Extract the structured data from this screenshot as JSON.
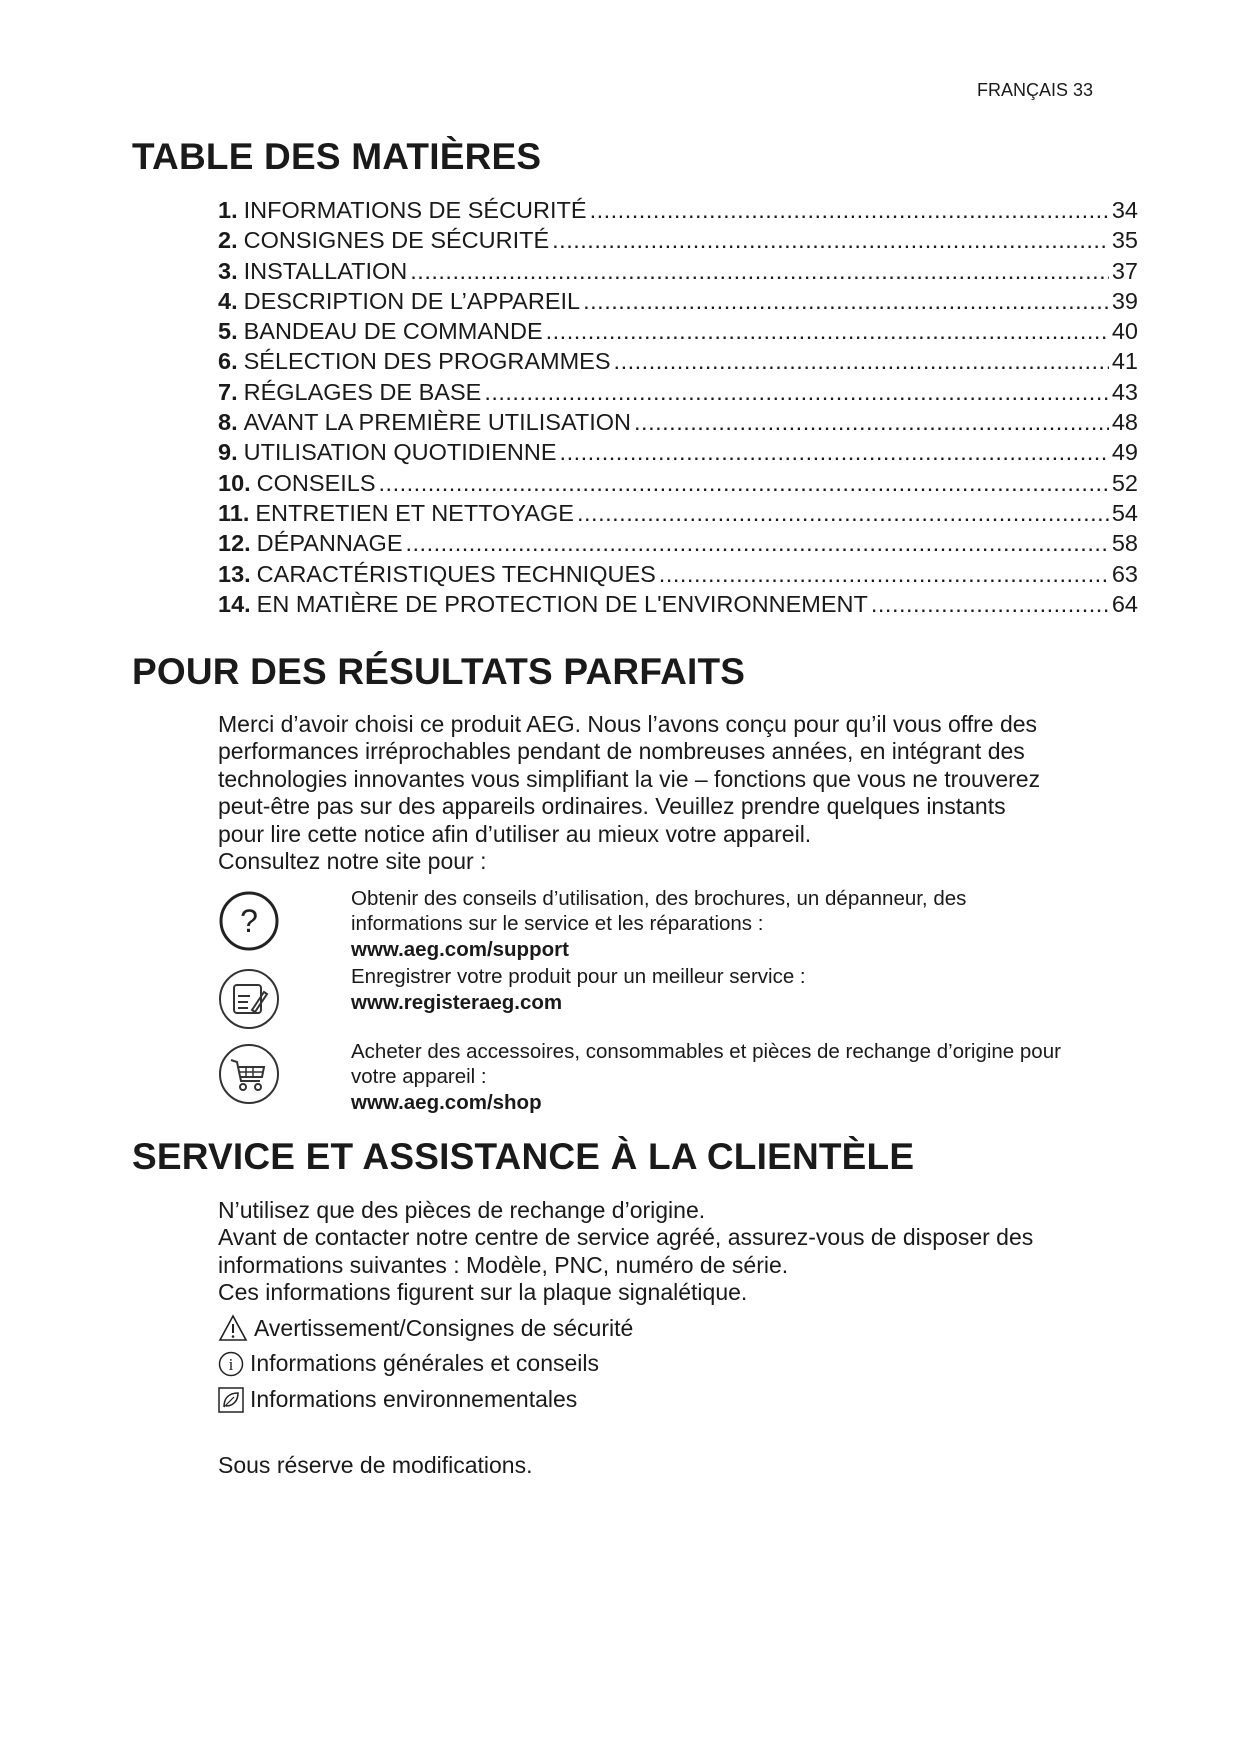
{
  "header": {
    "page_label": "FRANÇAIS 33"
  },
  "toc": {
    "title": "TABLE DES MATIÈRES",
    "items": [
      {
        "num": "1.",
        "label": "INFORMATIONS DE SÉCURITÉ",
        "page": "34"
      },
      {
        "num": "2.",
        "label": "CONSIGNES DE SÉCURITÉ",
        "page": "35"
      },
      {
        "num": "3.",
        "label": "INSTALLATION",
        "page": "37"
      },
      {
        "num": "4.",
        "label": "DESCRIPTION DE L’APPAREIL",
        "page": "39"
      },
      {
        "num": "5.",
        "label": "BANDEAU DE COMMANDE",
        "page": "40"
      },
      {
        "num": "6.",
        "label": "SÉLECTION DES PROGRAMMES",
        "page": "41"
      },
      {
        "num": "7.",
        "label": "RÉGLAGES DE BASE",
        "page": "43"
      },
      {
        "num": "8.",
        "label": "AVANT LA PREMIÈRE UTILISATION",
        "page": "48"
      },
      {
        "num": "9.",
        "label": "UTILISATION QUOTIDIENNE",
        "page": "49"
      },
      {
        "num": "10.",
        "label": "CONSEILS",
        "page": "52"
      },
      {
        "num": "11.",
        "label": "ENTRETIEN ET NETTOYAGE",
        "page": "54"
      },
      {
        "num": "12.",
        "label": "DÉPANNAGE",
        "page": "58"
      },
      {
        "num": "13.",
        "label": "CARACTÉRISTIQUES TECHNIQUES",
        "page": "63"
      },
      {
        "num": "14.",
        "label": "EN MATIÈRE DE PROTECTION DE L'ENVIRONNEMENT",
        "page": "64"
      }
    ]
  },
  "results": {
    "title": "POUR DES RÉSULTATS PARFAITS",
    "lines": [
      "Merci d’avoir choisi ce produit AEG. Nous l’avons conçu pour qu’il vous offre des",
      "performances irréprochables pendant de nombreuses années, en intégrant des",
      "technologies innovantes vous simplifiant la vie – fonctions que vous ne trouverez",
      "peut-être pas sur des appareils ordinaires. Veuillez prendre quelques instants",
      "pour lire cette notice afin d’utiliser au mieux votre appareil.",
      "Consultez notre site pour :"
    ],
    "links": [
      {
        "icon": "question-icon",
        "text1": "Obtenir des conseils d’utilisation, des brochures, un dépanneur, des",
        "text2": "informations sur le service et les réparations :",
        "url": "www.aeg.com/support"
      },
      {
        "icon": "register-notepad-icon",
        "text1": "Enregistrer votre produit pour un meilleur service :",
        "url": "www.registeraeg.com"
      },
      {
        "icon": "shopping-cart-icon",
        "text1": "Acheter des accessoires, consommables et pièces de rechange d’origine pour",
        "text2": "votre appareil :",
        "url": "www.aeg.com/shop"
      }
    ]
  },
  "service": {
    "title": "SERVICE ET ASSISTANCE À LA CLIENTÈLE",
    "lines": [
      "N’utilisez que des pièces de rechange d’origine.",
      "Avant de contacter notre centre de service agréé, assurez-vous de disposer des",
      "informations suivantes : Modèle, PNC, numéro de série.",
      "Ces informations figurent sur la plaque signalétique."
    ],
    "legend": [
      {
        "icon": "warning-triangle-icon",
        "label": "Avertissement/Consignes de sécurité"
      },
      {
        "icon": "info-icon",
        "label": "Informations générales et conseils"
      },
      {
        "icon": "environment-leaf-icon",
        "label": "Informations environnementales"
      }
    ],
    "footer": "Sous réserve de modifications."
  }
}
